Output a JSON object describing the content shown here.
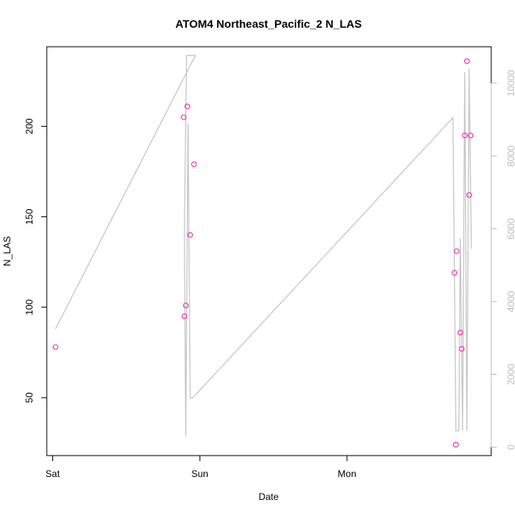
{
  "chart_data": {
    "type": "scatter",
    "title": "ATOM4 Northeast_Pacific_2 N_LAS",
    "xlabel": "Date",
    "ylabel": "N_LAS",
    "x_ticks": [
      "Sat",
      "Sun",
      "Mon"
    ],
    "x_unit": "days since Saturday 00:00",
    "xlim": [
      -0.04,
      2.98
    ],
    "ylim": [
      18,
      244
    ],
    "y_ticks": [
      50,
      100,
      150,
      200
    ],
    "y2lim": [
      -230,
      11000
    ],
    "y2_ticks": [
      0,
      2000,
      4000,
      6000,
      8000,
      10000
    ],
    "grid": false,
    "colors": {
      "points": "#ee2bb4",
      "line": "#c4c4c4",
      "right_axis": "#bdbdbd"
    },
    "series": [
      {
        "kind": "points",
        "axis": "left",
        "x": [
          0.02,
          0.89,
          0.895,
          0.905,
          0.915,
          0.935,
          0.96,
          2.73,
          2.74,
          2.745,
          2.77,
          2.78,
          2.8,
          2.815,
          2.83,
          2.84
        ],
        "y": [
          78,
          205,
          95,
          101,
          211,
          140,
          179,
          119,
          24,
          131,
          86,
          77,
          195,
          236,
          162,
          195
        ]
      },
      {
        "kind": "line",
        "axis": "right",
        "x": [
          0.02,
          0.97,
          0.91,
          0.895,
          0.905,
          0.92,
          0.935,
          0.95,
          2.72,
          2.74,
          2.76,
          2.77,
          2.785,
          2.8,
          2.815,
          2.83,
          2.845
        ],
        "y": [
          3250,
          10760,
          10760,
          5900,
          300,
          8900,
          1350,
          1350,
          9050,
          450,
          450,
          5750,
          450,
          10300,
          450,
          10400,
          5450
        ]
      }
    ]
  }
}
